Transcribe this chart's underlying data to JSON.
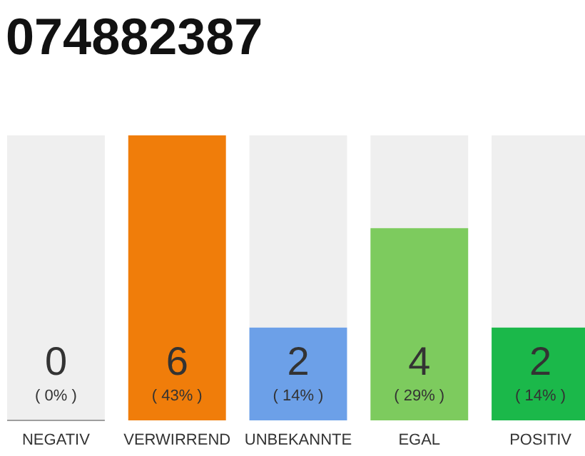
{
  "chart_data": {
    "type": "bar",
    "title": "074882387",
    "categories": [
      "NEGATIV",
      "VERWIRREND",
      "UNBEKANNTE",
      "EGAL",
      "POSITIV"
    ],
    "values": [
      0,
      43,
      14,
      29,
      14
    ],
    "colors": [
      "#9e9e9e",
      "#f07d0a",
      "#6ca0e8",
      "#7dcb5e",
      "#1bb84a"
    ],
    "value_labels": [
      "( 0% )",
      "( 43% )",
      "( 14% )",
      "( 29% )",
      "( 14% )"
    ],
    "annotations": [
      "0",
      "6",
      "2",
      "4",
      "2"
    ]
  }
}
